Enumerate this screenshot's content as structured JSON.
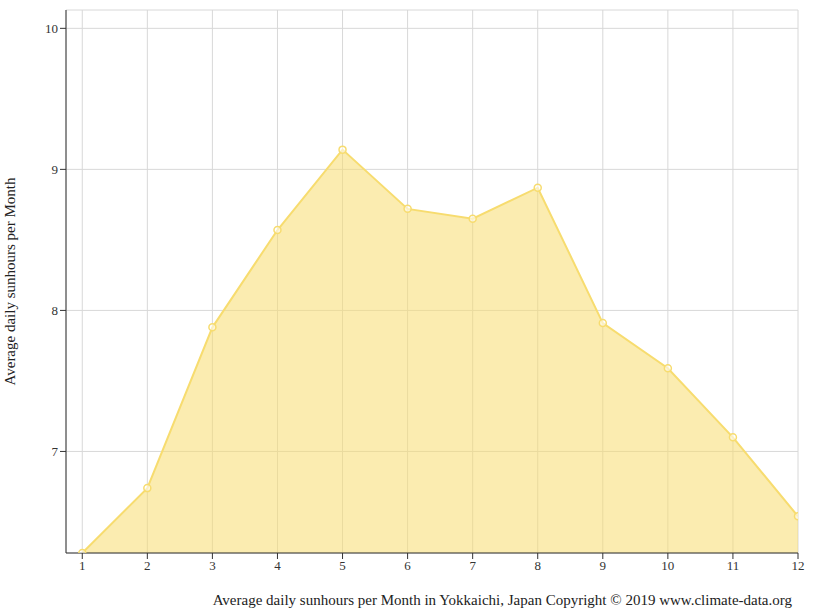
{
  "chart_data": {
    "type": "area",
    "x_label": "Average daily sunhours per Month in Yokkaichi, Japan Copyright © 2019 www.climate-data.org",
    "y_label": "Average daily sunhours per Month",
    "x": [
      1,
      2,
      3,
      4,
      5,
      6,
      7,
      8,
      9,
      10,
      11,
      12
    ],
    "values": [
      6.28,
      6.74,
      7.88,
      8.57,
      9.14,
      8.72,
      8.65,
      8.87,
      7.91,
      7.59,
      7.1,
      6.54
    ],
    "color": "#f7dc6f",
    "xlim": [
      0.75,
      12
    ],
    "xticks": [
      1,
      2,
      3,
      4,
      5,
      6,
      7,
      8,
      9,
      10,
      11,
      12
    ],
    "ylim": [
      6.28,
      10.13
    ],
    "yticks": [
      7,
      8,
      9,
      10
    ],
    "grid": true,
    "marker": "circle"
  }
}
